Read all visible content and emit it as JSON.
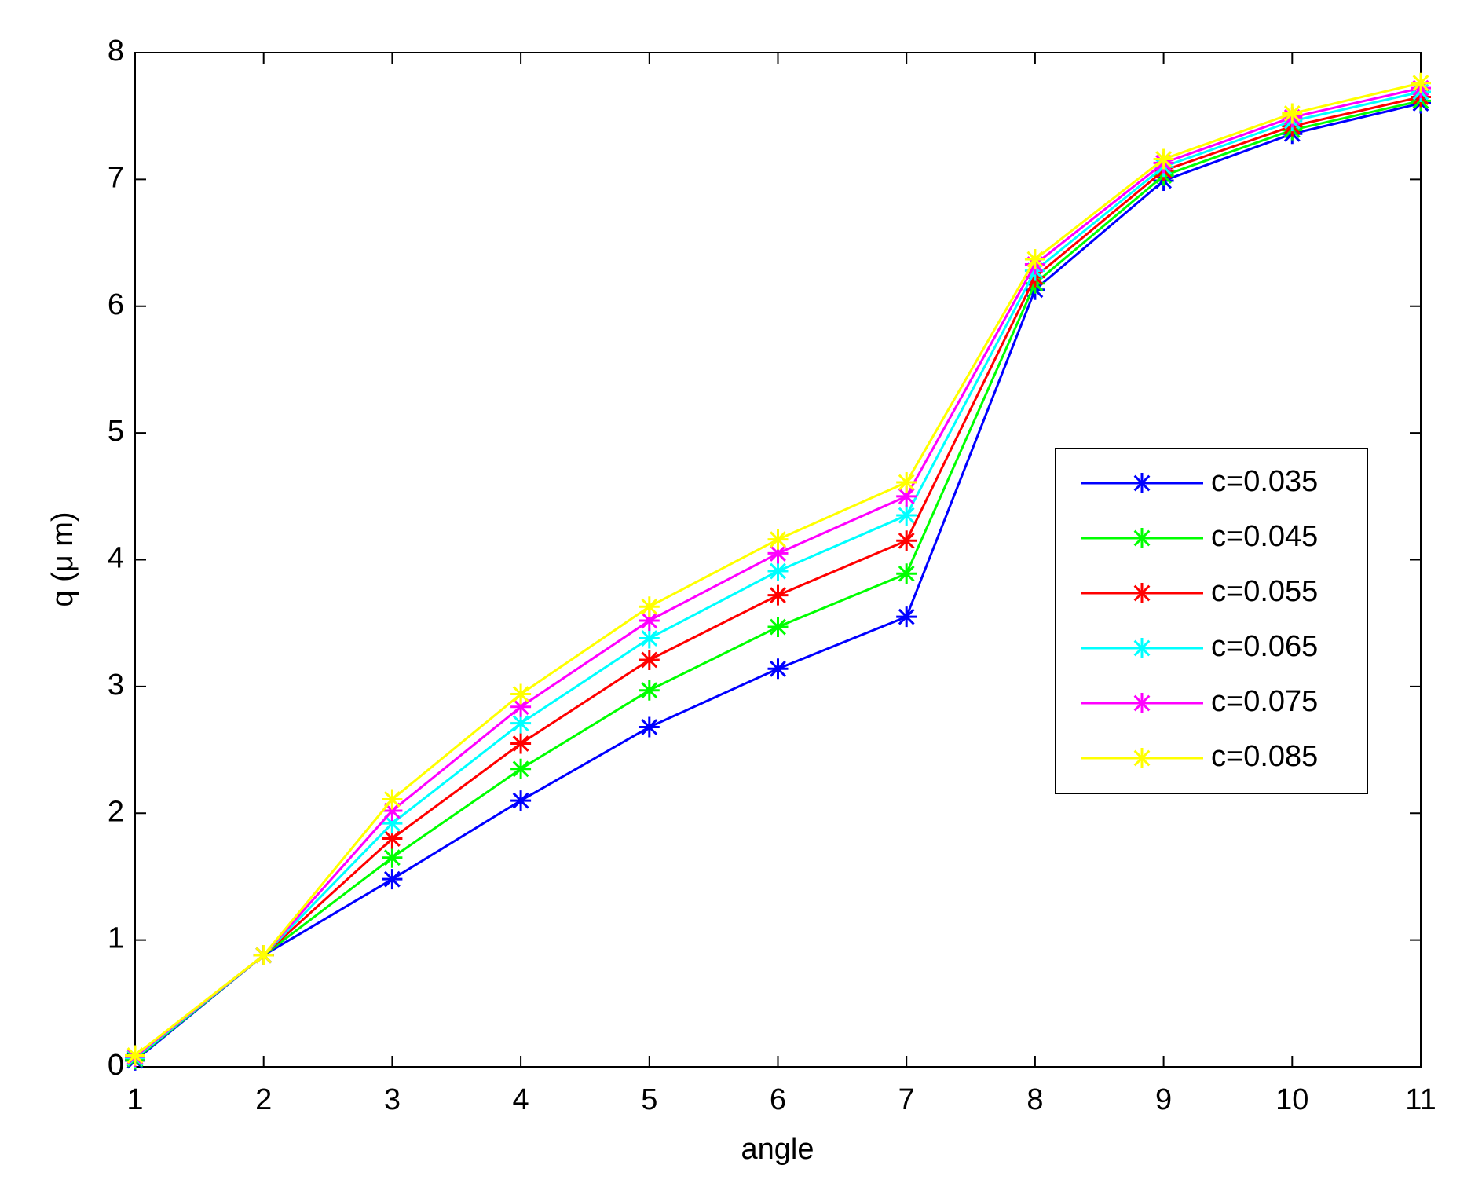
{
  "chart_data": {
    "type": "line",
    "xlabel": "angle",
    "ylabel": "q (μ m)",
    "x": [
      1,
      2,
      3,
      4,
      5,
      6,
      7,
      8,
      9,
      10,
      11
    ],
    "xlim": [
      1,
      11
    ],
    "xticks": [
      1,
      2,
      3,
      4,
      5,
      6,
      7,
      8,
      9,
      10,
      11
    ],
    "ylim": [
      0,
      8
    ],
    "yticks": [
      0,
      1,
      2,
      3,
      4,
      5,
      6,
      7,
      8
    ],
    "legend": "right",
    "series": [
      {
        "name": "c=0.035",
        "color": "#0000ff",
        "values": [
          0.05,
          0.88,
          1.48,
          2.1,
          2.68,
          3.14,
          3.55,
          6.13,
          6.99,
          7.36,
          7.6
        ]
      },
      {
        "name": "c=0.045",
        "color": "#00ff00",
        "values": [
          0.06,
          0.88,
          1.65,
          2.35,
          2.97,
          3.47,
          3.89,
          6.18,
          7.03,
          7.39,
          7.62
        ]
      },
      {
        "name": "c=0.055",
        "color": "#ff0000",
        "values": [
          0.07,
          0.88,
          1.8,
          2.55,
          3.21,
          3.72,
          4.15,
          6.23,
          7.07,
          7.42,
          7.65
        ]
      },
      {
        "name": "c=0.065",
        "color": "#00ffff",
        "values": [
          0.07,
          0.88,
          1.92,
          2.71,
          3.38,
          3.91,
          4.35,
          6.28,
          7.1,
          7.46,
          7.69
        ]
      },
      {
        "name": "c=0.075",
        "color": "#ff00ff",
        "values": [
          0.08,
          0.88,
          2.02,
          2.84,
          3.52,
          4.05,
          4.5,
          6.33,
          7.13,
          7.49,
          7.72
        ]
      },
      {
        "name": "c=0.085",
        "color": "#ffff00",
        "values": [
          0.09,
          0.88,
          2.11,
          2.94,
          3.63,
          4.16,
          4.61,
          6.37,
          7.16,
          7.52,
          7.76
        ]
      }
    ]
  }
}
